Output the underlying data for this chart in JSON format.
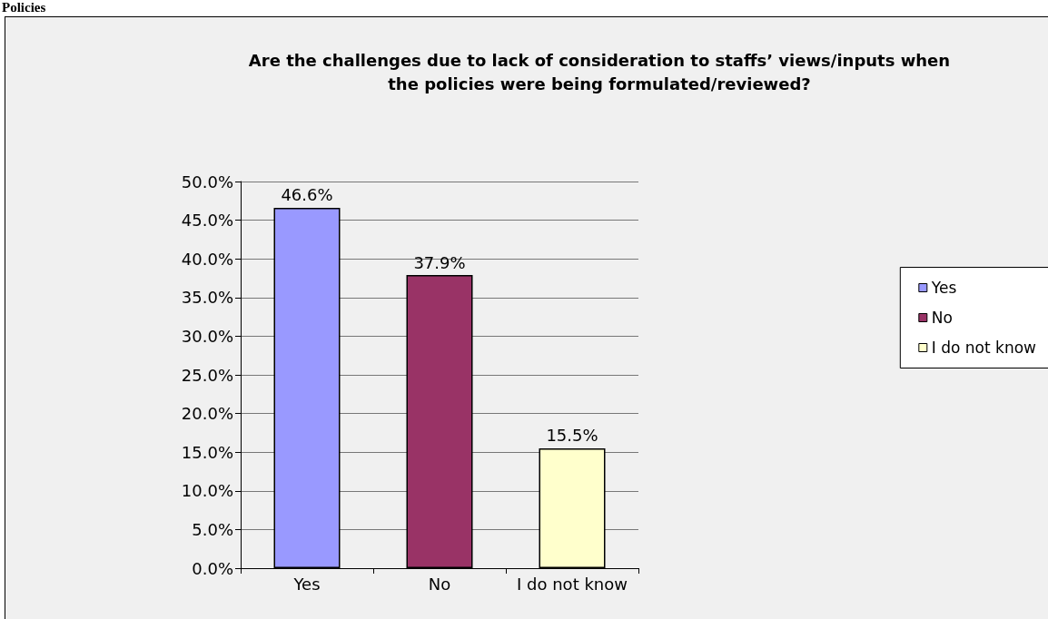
{
  "chart_data": {
    "type": "bar",
    "title": "Are the challenges due to lack of consideration to staffs’ views/inputs when\nthe policies were being formulated/reviewed?",
    "annotations": [
      "Policies"
    ],
    "categories": [
      "Yes",
      "No",
      "I do not know"
    ],
    "series": [
      {
        "name": "Yes",
        "color": "#9999ff",
        "values": [
          46.6,
          null,
          null
        ],
        "value_labels": [
          "46.6%",
          null,
          null
        ]
      },
      {
        "name": "No",
        "color": "#993366",
        "values": [
          null,
          37.9,
          null
        ],
        "value_labels": [
          null,
          "37.9%",
          null
        ]
      },
      {
        "name": "I do not know",
        "color": "#ffffcc",
        "values": [
          null,
          null,
          15.5
        ],
        "value_labels": [
          null,
          null,
          "15.5%"
        ]
      }
    ],
    "ylim": [
      0,
      50
    ],
    "yticks": [
      {
        "value": 0,
        "label": "0.0%"
      },
      {
        "value": 5,
        "label": "5.0%"
      },
      {
        "value": 10,
        "label": "10.0%"
      },
      {
        "value": 15,
        "label": "15.0%"
      },
      {
        "value": 20,
        "label": "20.0%"
      },
      {
        "value": 25,
        "label": "25.0%"
      },
      {
        "value": 30,
        "label": "30.0%"
      },
      {
        "value": 35,
        "label": "35.0%"
      },
      {
        "value": 40,
        "label": "40.0%"
      },
      {
        "value": 45,
        "label": "45.0%"
      },
      {
        "value": 50,
        "label": "50.0%"
      }
    ],
    "grid": "y",
    "legend": "right"
  }
}
